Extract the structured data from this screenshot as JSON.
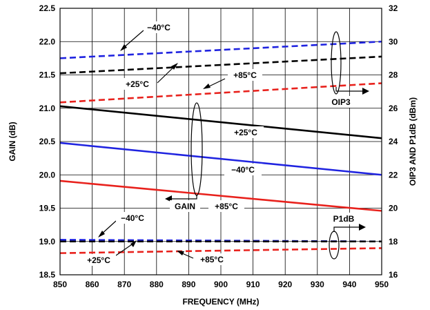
{
  "chart_data": {
    "type": "line",
    "xlabel": "FREQUENCY (MHz)",
    "ylabel_left": "GAIN (dB)",
    "ylabel_right": "OIP3 AND P1dB (dBm)",
    "xlim": [
      850,
      950
    ],
    "ylim_left": [
      18.5,
      22.5
    ],
    "ylim_right": [
      16,
      32
    ],
    "grid": true,
    "x_ticks": [
      "850",
      "860",
      "870",
      "880",
      "890",
      "900",
      "910",
      "920",
      "930",
      "940",
      "950"
    ],
    "y_left_ticks": [
      "18.5",
      "19.0",
      "19.5",
      "20.0",
      "20.5",
      "21.0",
      "21.5",
      "22.0",
      "22.5"
    ],
    "y_right_ticks": [
      "16",
      "18",
      "20",
      "22",
      "24",
      "26",
      "28",
      "30",
      "32"
    ],
    "series": [
      {
        "group": "GAIN",
        "temp": "+25°C",
        "axis": "left",
        "color": "#000000",
        "dashed": false,
        "x": [
          850,
          950
        ],
        "y": [
          21.03,
          20.55
        ]
      },
      {
        "group": "GAIN",
        "temp": "−40°C",
        "axis": "left",
        "color": "#1f23e0",
        "dashed": false,
        "x": [
          850,
          950
        ],
        "y": [
          20.48,
          20.0
        ]
      },
      {
        "group": "GAIN",
        "temp": "+85°C",
        "axis": "left",
        "color": "#e8211c",
        "dashed": false,
        "x": [
          850,
          950
        ],
        "y": [
          19.91,
          19.46
        ]
      },
      {
        "group": "OIP3",
        "temp": "−40°C",
        "axis": "right",
        "color": "#1f23e0",
        "dashed": true,
        "x": [
          850,
          950
        ],
        "y": [
          29.0,
          30.0
        ]
      },
      {
        "group": "OIP3",
        "temp": "+25°C",
        "axis": "right",
        "color": "#000000",
        "dashed": true,
        "x": [
          850,
          950
        ],
        "y": [
          28.1,
          29.1
        ]
      },
      {
        "group": "OIP3",
        "temp": "+85°C",
        "axis": "right",
        "color": "#e8211c",
        "dashed": true,
        "x": [
          850,
          950
        ],
        "y": [
          26.35,
          27.5
        ]
      },
      {
        "group": "P1dB",
        "temp": "−40°C",
        "axis": "right",
        "color": "#1f23e0",
        "dashed": true,
        "x": [
          850,
          950
        ],
        "y": [
          18.1,
          18.0
        ]
      },
      {
        "group": "P1dB",
        "temp": "+25°C",
        "axis": "right",
        "color": "#000000",
        "dashed": true,
        "x": [
          850,
          950
        ],
        "y": [
          18.0,
          18.0
        ]
      },
      {
        "group": "P1dB",
        "temp": "+85°C",
        "axis": "right",
        "color": "#e8211c",
        "dashed": true,
        "x": [
          850,
          950
        ],
        "y": [
          17.3,
          17.6
        ]
      }
    ],
    "annotations": {
      "oip3_m40": "−40°C",
      "oip3_p25": "+25°C",
      "oip3_p85": "+85°C",
      "oip3_group": "OIP3",
      "gain_p25": "+25°C",
      "gain_m40": "−40°C",
      "gain_p85": "+85°C",
      "gain_group": "GAIN",
      "p1db_group": "P1dB",
      "p1db_m40": "−40°C",
      "p1db_p25": "+25°C",
      "p1db_p85": "+85°C"
    }
  }
}
